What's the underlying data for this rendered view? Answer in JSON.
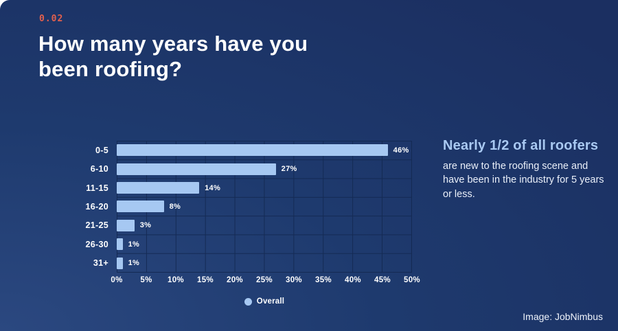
{
  "page": {
    "kicker": "0.02",
    "title": "How many years have you been roofing?",
    "credit": "Image: JobNimbus"
  },
  "callout": {
    "headline": "Nearly 1/2 of all roofers",
    "body": "are new to the roofing scene and have been in the industry for 5 years or less."
  },
  "colors": {
    "background_top": "#1b2f61",
    "background_mid": "#1e3a6e",
    "background_bottom": "#2b4880",
    "bar": "#a6c8f2",
    "grid": "#142a54",
    "kicker": "#e2604e",
    "headline": "#a9c9f2",
    "text": "#ffffff"
  },
  "chart_data": {
    "type": "bar",
    "orientation": "horizontal",
    "title": "How many years have you been roofing?",
    "categories": [
      "0-5",
      "6-10",
      "11-15",
      "16-20",
      "21-25",
      "26-30",
      "31+"
    ],
    "values": [
      46,
      27,
      14,
      8,
      3,
      1,
      1
    ],
    "value_labels": [
      "46%",
      "27%",
      "14%",
      "8%",
      "3%",
      "1%",
      "1%"
    ],
    "x_ticks": [
      "0%",
      "5%",
      "10%",
      "15%",
      "20%",
      "25%",
      "30%",
      "35%",
      "40%",
      "45%",
      "50%"
    ],
    "xlim": [
      0,
      50
    ],
    "xlabel": "",
    "ylabel": "",
    "grid": true,
    "legend": [
      {
        "label": "Overall"
      }
    ],
    "legend_position": "bottom"
  }
}
